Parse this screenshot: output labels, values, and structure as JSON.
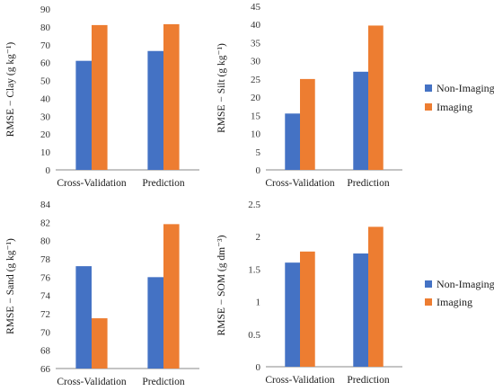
{
  "legend_items": [
    {
      "label": "Non-Imaging",
      "color": "#4472C4"
    },
    {
      "label": "Imaging",
      "color": "#ED7D31"
    }
  ],
  "chart_data": [
    {
      "type": "bar",
      "categories": [
        "Cross-Validation",
        "Prediction"
      ],
      "series": [
        {
          "name": "Non-Imaging",
          "color": "#4472C4",
          "values": [
            61,
            66.5
          ]
        },
        {
          "name": "Imaging",
          "color": "#ED7D31",
          "values": [
            81,
            81.5
          ]
        }
      ],
      "ylabel": "RMSE − Clay (g kg⁻¹)",
      "ylim": [
        0,
        90
      ],
      "yticks": [
        "0",
        "10",
        "20",
        "30",
        "40",
        "50",
        "60",
        "70",
        "80",
        "90"
      ],
      "grid": false,
      "legend": "none"
    },
    {
      "type": "bar",
      "categories": [
        "Cross-Validation",
        "Prediction"
      ],
      "series": [
        {
          "name": "Non-Imaging",
          "color": "#4472C4",
          "values": [
            15.5,
            27
          ]
        },
        {
          "name": "Imaging",
          "color": "#ED7D31",
          "values": [
            25,
            39.7
          ]
        }
      ],
      "ylabel": "RMSE − Silt (g kg⁻¹)",
      "ylim": [
        0,
        45
      ],
      "yticks": [
        "0",
        "5",
        "10",
        "15",
        "20",
        "25",
        "30",
        "35",
        "40",
        "45"
      ],
      "grid": false,
      "legend": "right"
    },
    {
      "type": "bar",
      "categories": [
        "Cross-Validation",
        "Prediction"
      ],
      "series": [
        {
          "name": "Non-Imaging",
          "color": "#4472C4",
          "values": [
            77.2,
            76
          ]
        },
        {
          "name": "Imaging",
          "color": "#ED7D31",
          "values": [
            71.5,
            81.8
          ]
        }
      ],
      "ylabel": "RMSE − Sand (g kg⁻¹)",
      "ylim": [
        66,
        84
      ],
      "yticks": [
        "66",
        "68",
        "70",
        "72",
        "74",
        "76",
        "78",
        "80",
        "82",
        "84"
      ],
      "grid": false,
      "legend": "none"
    },
    {
      "type": "bar",
      "categories": [
        "Cross-Validation",
        "Prediction"
      ],
      "series": [
        {
          "name": "Non-Imaging",
          "color": "#4472C4",
          "values": [
            1.6,
            1.74
          ]
        },
        {
          "name": "Imaging",
          "color": "#ED7D31",
          "values": [
            1.77,
            2.15
          ]
        }
      ],
      "ylabel": "RMSE − SOM (g dm⁻³)",
      "ylim": [
        0,
        2.5
      ],
      "yticks": [
        "0",
        "0.5",
        "1",
        "1.5",
        "2",
        "2.5"
      ],
      "grid": false,
      "legend": "right"
    }
  ]
}
